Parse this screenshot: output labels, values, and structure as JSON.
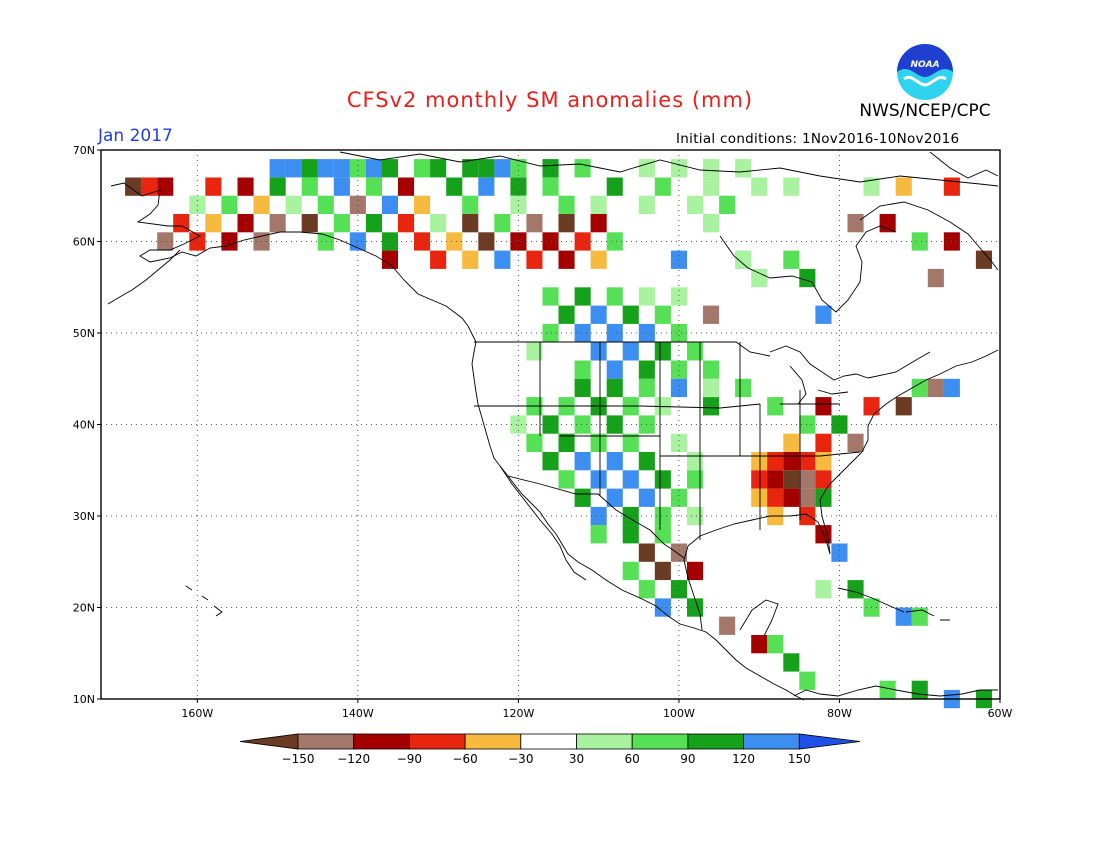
{
  "title": "CFSv2 monthly SM anomalies (mm)",
  "agency": "NWS/NCEP/CPC",
  "logo": {
    "text": "NOAA",
    "icon": "noaa-logo-icon",
    "color_dark": "#1e3fcf",
    "color_light": "#2fd3f0"
  },
  "period": "Jan 2017",
  "initial_conditions": "Initial conditions: 1Nov2016-10Nov2016",
  "map": {
    "lon_range": [
      -172,
      -60
    ],
    "lat_range": [
      10,
      70
    ],
    "lat_ticks": [
      {
        "value": 70,
        "label": "70N"
      },
      {
        "value": 60,
        "label": "60N"
      },
      {
        "value": 50,
        "label": "50N"
      },
      {
        "value": 40,
        "label": "40N"
      },
      {
        "value": 30,
        "label": "30N"
      },
      {
        "value": 20,
        "label": "20N"
      },
      {
        "value": 10,
        "label": "10N"
      }
    ],
    "lon_ticks": [
      {
        "value": -160,
        "label": "160W"
      },
      {
        "value": -140,
        "label": "140W"
      },
      {
        "value": -120,
        "label": "120W"
      },
      {
        "value": -100,
        "label": "100W"
      },
      {
        "value": -80,
        "label": "80W"
      },
      {
        "value": -60,
        "label": "60W"
      }
    ],
    "gridlines": "dotted",
    "field": "soil moisture anomaly (mm)"
  },
  "colorbar": {
    "labels": [
      "-150",
      "-120",
      "-90",
      "-60",
      "-30",
      "30",
      "60",
      "90",
      "120",
      "150"
    ],
    "colors": [
      "#6b3b24",
      "#a3786b",
      "#a50000",
      "#e8260f",
      "#f6ba3f",
      "#ffffff",
      "#a9f3a0",
      "#55e055",
      "#16a11a",
      "#3c8ef0",
      "#1f50e8"
    ]
  },
  "anomaly_colors": {
    "-150": "#6b3b24",
    "-120": "#a3786b",
    "-90": "#a50000",
    "-60": "#e8260f",
    "-30": "#f6ba3f",
    "30": "#a9f3a0",
    "60": "#55e055",
    "90": "#16a11a",
    "120": "#3c8ef0",
    "150": "#1f50e8"
  },
  "anomaly_cells": [
    {
      "lon": -150,
      "lat": 68,
      "v": 120
    },
    {
      "lon": -148,
      "lat": 68,
      "v": 120
    },
    {
      "lon": -146,
      "lat": 68,
      "v": 90
    },
    {
      "lon": -144,
      "lat": 68,
      "v": 120
    },
    {
      "lon": -142,
      "lat": 68,
      "v": 120
    },
    {
      "lon": -140,
      "lat": 68,
      "v": 60
    },
    {
      "lon": -138,
      "lat": 68,
      "v": 120
    },
    {
      "lon": -136,
      "lat": 68,
      "v": 90
    },
    {
      "lon": -132,
      "lat": 68,
      "v": 60
    },
    {
      "lon": -130,
      "lat": 68,
      "v": 90
    },
    {
      "lon": -126,
      "lat": 68,
      "v": 90
    },
    {
      "lon": -124,
      "lat": 68,
      "v": 90
    },
    {
      "lon": -122,
      "lat": 68,
      "v": 120
    },
    {
      "lon": -120,
      "lat": 68,
      "v": 60
    },
    {
      "lon": -116,
      "lat": 68,
      "v": 90
    },
    {
      "lon": -112,
      "lat": 68,
      "v": 60
    },
    {
      "lon": -104,
      "lat": 68,
      "v": 30
    },
    {
      "lon": -100,
      "lat": 68,
      "v": 30
    },
    {
      "lon": -96,
      "lat": 68,
      "v": 30
    },
    {
      "lon": -92,
      "lat": 68,
      "v": 30
    },
    {
      "lon": -164,
      "lat": 66,
      "v": -90
    },
    {
      "lon": -166,
      "lat": 66,
      "v": -60
    },
    {
      "lon": -168,
      "lat": 66,
      "v": -150
    },
    {
      "lon": -158,
      "lat": 66,
      "v": -60
    },
    {
      "lon": -154,
      "lat": 66,
      "v": -90
    },
    {
      "lon": -150,
      "lat": 66,
      "v": 90
    },
    {
      "lon": -146,
      "lat": 66,
      "v": 60
    },
    {
      "lon": -142,
      "lat": 66,
      "v": 120
    },
    {
      "lon": -138,
      "lat": 66,
      "v": 60
    },
    {
      "lon": -134,
      "lat": 66,
      "v": -90
    },
    {
      "lon": -128,
      "lat": 66,
      "v": 90
    },
    {
      "lon": -124,
      "lat": 66,
      "v": 120
    },
    {
      "lon": -120,
      "lat": 66,
      "v": 90
    },
    {
      "lon": -116,
      "lat": 66,
      "v": 60
    },
    {
      "lon": -108,
      "lat": 66,
      "v": 90
    },
    {
      "lon": -102,
      "lat": 66,
      "v": 60
    },
    {
      "lon": -96,
      "lat": 66,
      "v": 30
    },
    {
      "lon": -90,
      "lat": 66,
      "v": 30
    },
    {
      "lon": -86,
      "lat": 66,
      "v": 30
    },
    {
      "lon": -160,
      "lat": 64,
      "v": 30
    },
    {
      "lon": -156,
      "lat": 64,
      "v": 60
    },
    {
      "lon": -152,
      "lat": 64,
      "v": -30
    },
    {
      "lon": -148,
      "lat": 64,
      "v": 30
    },
    {
      "lon": -144,
      "lat": 64,
      "v": 60
    },
    {
      "lon": -140,
      "lat": 64,
      "v": -120
    },
    {
      "lon": -136,
      "lat": 64,
      "v": 120
    },
    {
      "lon": -132,
      "lat": 64,
      "v": -30
    },
    {
      "lon": -126,
      "lat": 64,
      "v": 60
    },
    {
      "lon": -120,
      "lat": 64,
      "v": 30
    },
    {
      "lon": -114,
      "lat": 64,
      "v": 60
    },
    {
      "lon": -110,
      "lat": 64,
      "v": 30
    },
    {
      "lon": -104,
      "lat": 64,
      "v": 30
    },
    {
      "lon": -98,
      "lat": 64,
      "v": 30
    },
    {
      "lon": -94,
      "lat": 64,
      "v": 60
    },
    {
      "lon": -162,
      "lat": 62,
      "v": -60
    },
    {
      "lon": -158,
      "lat": 62,
      "v": -30
    },
    {
      "lon": -154,
      "lat": 62,
      "v": -90
    },
    {
      "lon": -150,
      "lat": 62,
      "v": -120
    },
    {
      "lon": -146,
      "lat": 62,
      "v": -150
    },
    {
      "lon": -142,
      "lat": 62,
      "v": 60
    },
    {
      "lon": -138,
      "lat": 62,
      "v": 90
    },
    {
      "lon": -134,
      "lat": 62,
      "v": -60
    },
    {
      "lon": -130,
      "lat": 62,
      "v": 30
    },
    {
      "lon": -126,
      "lat": 62,
      "v": -150
    },
    {
      "lon": -122,
      "lat": 62,
      "v": 60
    },
    {
      "lon": -118,
      "lat": 62,
      "v": -120
    },
    {
      "lon": -114,
      "lat": 62,
      "v": -150
    },
    {
      "lon": -110,
      "lat": 62,
      "v": -90
    },
    {
      "lon": -96,
      "lat": 62,
      "v": 30
    },
    {
      "lon": -164,
      "lat": 60,
      "v": -120
    },
    {
      "lon": -160,
      "lat": 60,
      "v": -60
    },
    {
      "lon": -156,
      "lat": 60,
      "v": -90
    },
    {
      "lon": -152,
      "lat": 60,
      "v": -120
    },
    {
      "lon": -144,
      "lat": 60,
      "v": 60
    },
    {
      "lon": -140,
      "lat": 60,
      "v": 120
    },
    {
      "lon": -136,
      "lat": 60,
      "v": 90
    },
    {
      "lon": -132,
      "lat": 60,
      "v": -60
    },
    {
      "lon": -128,
      "lat": 60,
      "v": -30
    },
    {
      "lon": -124,
      "lat": 60,
      "v": -150
    },
    {
      "lon": -120,
      "lat": 60,
      "v": -90
    },
    {
      "lon": -116,
      "lat": 60,
      "v": -90
    },
    {
      "lon": -112,
      "lat": 60,
      "v": -60
    },
    {
      "lon": -108,
      "lat": 60,
      "v": 60
    },
    {
      "lon": -136,
      "lat": 58,
      "v": -90
    },
    {
      "lon": -130,
      "lat": 58,
      "v": -60
    },
    {
      "lon": -126,
      "lat": 58,
      "v": -30
    },
    {
      "lon": -122,
      "lat": 58,
      "v": 120
    },
    {
      "lon": -118,
      "lat": 58,
      "v": -60
    },
    {
      "lon": -114,
      "lat": 58,
      "v": -90
    },
    {
      "lon": -110,
      "lat": 58,
      "v": -30
    },
    {
      "lon": -100,
      "lat": 58,
      "v": 120
    },
    {
      "lon": -92,
      "lat": 58,
      "v": 30
    },
    {
      "lon": -116,
      "lat": 54,
      "v": 60
    },
    {
      "lon": -112,
      "lat": 54,
      "v": 90
    },
    {
      "lon": -108,
      "lat": 54,
      "v": 60
    },
    {
      "lon": -104,
      "lat": 54,
      "v": 30
    },
    {
      "lon": -100,
      "lat": 54,
      "v": 30
    },
    {
      "lon": -114,
      "lat": 52,
      "v": 90
    },
    {
      "lon": -110,
      "lat": 52,
      "v": 120
    },
    {
      "lon": -106,
      "lat": 52,
      "v": 90
    },
    {
      "lon": -102,
      "lat": 52,
      "v": 60
    },
    {
      "lon": -96,
      "lat": 52,
      "v": -120
    },
    {
      "lon": -112,
      "lat": 50,
      "v": 120
    },
    {
      "lon": -108,
      "lat": 50,
      "v": 120
    },
    {
      "lon": -104,
      "lat": 50,
      "v": 120
    },
    {
      "lon": -100,
      "lat": 50,
      "v": 60
    },
    {
      "lon": -116,
      "lat": 50,
      "v": 60
    },
    {
      "lon": -110,
      "lat": 48,
      "v": 120
    },
    {
      "lon": -106,
      "lat": 48,
      "v": 120
    },
    {
      "lon": -102,
      "lat": 48,
      "v": 90
    },
    {
      "lon": -98,
      "lat": 48,
      "v": 60
    },
    {
      "lon": -118,
      "lat": 48,
      "v": 30
    },
    {
      "lon": -112,
      "lat": 46,
      "v": 60
    },
    {
      "lon": -108,
      "lat": 46,
      "v": 120
    },
    {
      "lon": -104,
      "lat": 46,
      "v": 90
    },
    {
      "lon": -100,
      "lat": 46,
      "v": 60
    },
    {
      "lon": -96,
      "lat": 46,
      "v": 60
    },
    {
      "lon": -112,
      "lat": 44,
      "v": 90
    },
    {
      "lon": -108,
      "lat": 44,
      "v": 90
    },
    {
      "lon": -104,
      "lat": 44,
      "v": 60
    },
    {
      "lon": -100,
      "lat": 44,
      "v": 120
    },
    {
      "lon": -96,
      "lat": 44,
      "v": 30
    },
    {
      "lon": -118,
      "lat": 42,
      "v": 60
    },
    {
      "lon": -114,
      "lat": 42,
      "v": 60
    },
    {
      "lon": -110,
      "lat": 42,
      "v": 90
    },
    {
      "lon": -106,
      "lat": 42,
      "v": 60
    },
    {
      "lon": -102,
      "lat": 42,
      "v": 30
    },
    {
      "lon": -120,
      "lat": 40,
      "v": 30
    },
    {
      "lon": -116,
      "lat": 40,
      "v": 90
    },
    {
      "lon": -112,
      "lat": 40,
      "v": 60
    },
    {
      "lon": -108,
      "lat": 40,
      "v": 90
    },
    {
      "lon": -104,
      "lat": 40,
      "v": 60
    },
    {
      "lon": -118,
      "lat": 38,
      "v": 60
    },
    {
      "lon": -114,
      "lat": 38,
      "v": 90
    },
    {
      "lon": -110,
      "lat": 38,
      "v": 60
    },
    {
      "lon": -106,
      "lat": 38,
      "v": 60
    },
    {
      "lon": -100,
      "lat": 38,
      "v": 30
    },
    {
      "lon": -116,
      "lat": 36,
      "v": 90
    },
    {
      "lon": -112,
      "lat": 36,
      "v": 120
    },
    {
      "lon": -108,
      "lat": 36,
      "v": 120
    },
    {
      "lon": -104,
      "lat": 36,
      "v": 90
    },
    {
      "lon": -98,
      "lat": 36,
      "v": 30
    },
    {
      "lon": -114,
      "lat": 34,
      "v": 60
    },
    {
      "lon": -110,
      "lat": 34,
      "v": 120
    },
    {
      "lon": -106,
      "lat": 34,
      "v": 120
    },
    {
      "lon": -102,
      "lat": 34,
      "v": 90
    },
    {
      "lon": -98,
      "lat": 34,
      "v": 60
    },
    {
      "lon": -112,
      "lat": 32,
      "v": 90
    },
    {
      "lon": -108,
      "lat": 32,
      "v": 120
    },
    {
      "lon": -104,
      "lat": 32,
      "v": 120
    },
    {
      "lon": -100,
      "lat": 32,
      "v": 60
    },
    {
      "lon": -110,
      "lat": 30,
      "v": 120
    },
    {
      "lon": -106,
      "lat": 30,
      "v": 90
    },
    {
      "lon": -102,
      "lat": 30,
      "v": 60
    },
    {
      "lon": -98,
      "lat": 30,
      "v": 30
    },
    {
      "lon": -110,
      "lat": 28,
      "v": 60
    },
    {
      "lon": -106,
      "lat": 28,
      "v": 90
    },
    {
      "lon": -102,
      "lat": 28,
      "v": 60
    },
    {
      "lon": -104,
      "lat": 26,
      "v": -150
    },
    {
      "lon": -100,
      "lat": 26,
      "v": -120
    },
    {
      "lon": -106,
      "lat": 24,
      "v": 60
    },
    {
      "lon": -102,
      "lat": 24,
      "v": -150
    },
    {
      "lon": -98,
      "lat": 24,
      "v": -90
    },
    {
      "lon": -104,
      "lat": 22,
      "v": 60
    },
    {
      "lon": -100,
      "lat": 22,
      "v": 90
    },
    {
      "lon": -102,
      "lat": 20,
      "v": 120
    },
    {
      "lon": -98,
      "lat": 20,
      "v": 90
    },
    {
      "lon": -94,
      "lat": 18,
      "v": -120
    },
    {
      "lon": -90,
      "lat": 16,
      "v": -90
    },
    {
      "lon": -88,
      "lat": 16,
      "v": 60
    },
    {
      "lon": -86,
      "lat": 14,
      "v": 90
    },
    {
      "lon": -84,
      "lat": 12,
      "v": 60
    },
    {
      "lon": -90,
      "lat": 36,
      "v": -30
    },
    {
      "lon": -88,
      "lat": 36,
      "v": -60
    },
    {
      "lon": -86,
      "lat": 36,
      "v": -90
    },
    {
      "lon": -84,
      "lat": 36,
      "v": -60
    },
    {
      "lon": -82,
      "lat": 36,
      "v": -30
    },
    {
      "lon": -90,
      "lat": 34,
      "v": -60
    },
    {
      "lon": -88,
      "lat": 34,
      "v": -90
    },
    {
      "lon": -86,
      "lat": 34,
      "v": -150
    },
    {
      "lon": -84,
      "lat": 34,
      "v": -120
    },
    {
      "lon": -82,
      "lat": 34,
      "v": -60
    },
    {
      "lon": -90,
      "lat": 32,
      "v": -30
    },
    {
      "lon": -88,
      "lat": 32,
      "v": -60
    },
    {
      "lon": -86,
      "lat": 32,
      "v": -90
    },
    {
      "lon": -84,
      "lat": 32,
      "v": -120
    },
    {
      "lon": -82,
      "lat": 32,
      "v": 90
    },
    {
      "lon": -88,
      "lat": 30,
      "v": -30
    },
    {
      "lon": -84,
      "lat": 30,
      "v": -60
    },
    {
      "lon": -82,
      "lat": 28,
      "v": -90
    },
    {
      "lon": -80,
      "lat": 26,
      "v": 120
    },
    {
      "lon": -86,
      "lat": 38,
      "v": -30
    },
    {
      "lon": -82,
      "lat": 38,
      "v": -60
    },
    {
      "lon": -78,
      "lat": 38,
      "v": -120
    },
    {
      "lon": -84,
      "lat": 40,
      "v": 60
    },
    {
      "lon": -80,
      "lat": 40,
      "v": 90
    },
    {
      "lon": -88,
      "lat": 42,
      "v": 60
    },
    {
      "lon": -82,
      "lat": 42,
      "v": -90
    },
    {
      "lon": -76,
      "lat": 42,
      "v": -60
    },
    {
      "lon": -72,
      "lat": 42,
      "v": -150
    },
    {
      "lon": -70,
      "lat": 44,
      "v": 60
    },
    {
      "lon": -68,
      "lat": 44,
      "v": -120
    },
    {
      "lon": -66,
      "lat": 44,
      "v": 120
    },
    {
      "lon": -92,
      "lat": 44,
      "v": 60
    },
    {
      "lon": -96,
      "lat": 42,
      "v": 90
    },
    {
      "lon": -78,
      "lat": 62,
      "v": -120
    },
    {
      "lon": -74,
      "lat": 62,
      "v": -90
    },
    {
      "lon": -70,
      "lat": 60,
      "v": 60
    },
    {
      "lon": -66,
      "lat": 60,
      "v": -90
    },
    {
      "lon": -62,
      "lat": 58,
      "v": -150
    },
    {
      "lon": -68,
      "lat": 56,
      "v": -120
    },
    {
      "lon": -76,
      "lat": 66,
      "v": 30
    },
    {
      "lon": -72,
      "lat": 66,
      "v": -30
    },
    {
      "lon": -66,
      "lat": 66,
      "v": -60
    },
    {
      "lon": -82,
      "lat": 52,
      "v": 120
    },
    {
      "lon": -90,
      "lat": 56,
      "v": 30
    },
    {
      "lon": -86,
      "lat": 58,
      "v": 60
    },
    {
      "lon": -84,
      "lat": 56,
      "v": 90
    },
    {
      "lon": -76,
      "lat": 20,
      "v": 60
    },
    {
      "lon": -72,
      "lat": 19,
      "v": 120
    },
    {
      "lon": -70,
      "lat": 19,
      "v": 60
    },
    {
      "lon": -78,
      "lat": 22,
      "v": 90
    },
    {
      "lon": -82,
      "lat": 22,
      "v": 30
    },
    {
      "lon": -74,
      "lat": 11,
      "v": 60
    },
    {
      "lon": -70,
      "lat": 11,
      "v": 90
    },
    {
      "lon": -66,
      "lat": 10,
      "v": 120
    },
    {
      "lon": -62,
      "lat": 10,
      "v": 90
    }
  ]
}
